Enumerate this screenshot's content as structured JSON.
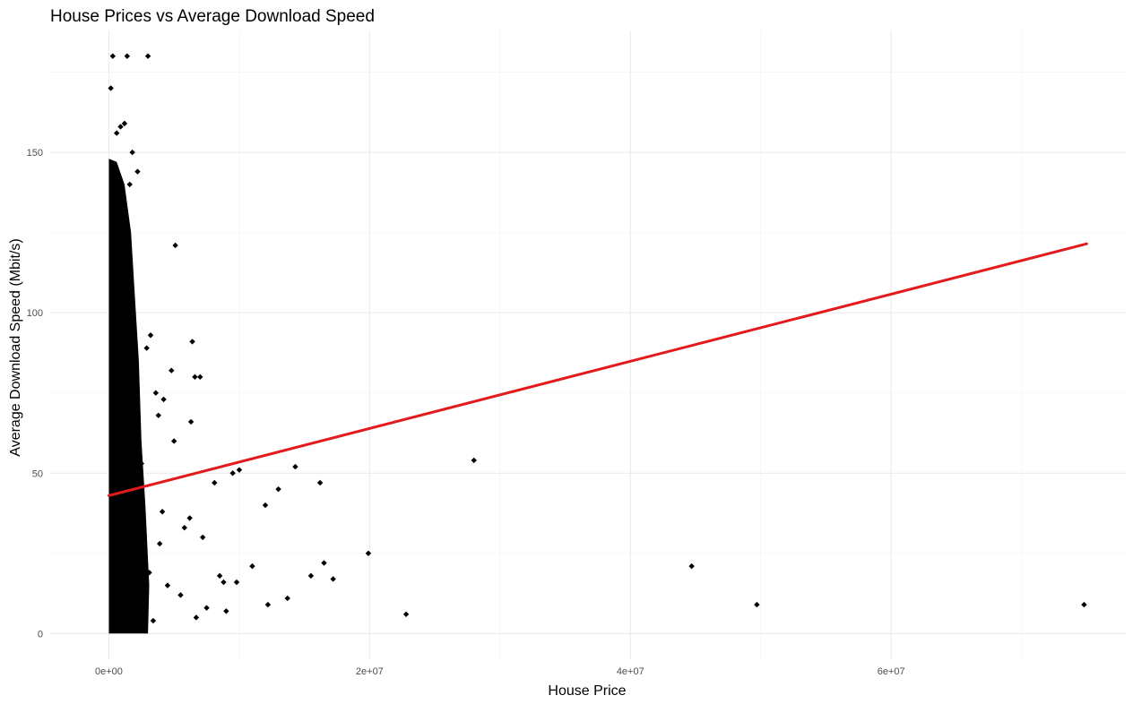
{
  "chart_data": {
    "type": "scatter",
    "title": "House Prices vs Average Download Speed",
    "xlabel": "House Price",
    "ylabel": "Average Download Speed (Mbit/s)",
    "xlim": [
      -4500000,
      78000000
    ],
    "ylim": [
      -8,
      188
    ],
    "x_ticks": [
      0,
      20000000,
      40000000,
      60000000
    ],
    "x_tick_labels": [
      "0e+00",
      "2e+07",
      "4e+07",
      "6e+07"
    ],
    "y_ticks": [
      0,
      50,
      100,
      150
    ],
    "y_tick_labels": [
      "0",
      "50",
      "100",
      "150"
    ],
    "grid": true,
    "point_color": "#000000",
    "trend_color": "#e31a1c",
    "trendline": {
      "x": [
        0,
        75000000
      ],
      "y": [
        43,
        121.5
      ]
    },
    "points": {
      "x": [
        300000,
        3000000,
        1400000,
        150000,
        900000,
        1200000,
        600000,
        1800000,
        2200000,
        5100000,
        6400000,
        3200000,
        4800000,
        7000000,
        6300000,
        2900000,
        3600000,
        4200000,
        3800000,
        6600000,
        5000000,
        1900000,
        2500000,
        10000000,
        14300000,
        16200000,
        13000000,
        28000000,
        9500000,
        8100000,
        12000000,
        19900000,
        44700000,
        16500000,
        15500000,
        17200000,
        11000000,
        13700000,
        12200000,
        49700000,
        74800000,
        22800000,
        9000000,
        5500000,
        6700000,
        7500000,
        3400000,
        4500000,
        2700000,
        8500000,
        3900000,
        5800000,
        6200000,
        7200000,
        4100000,
        2400000,
        9800000,
        8800000,
        3100000,
        1600000
      ],
      "y": [
        180,
        180,
        180,
        170,
        158,
        159,
        156,
        150,
        144,
        121,
        91,
        93,
        82,
        80,
        66,
        89,
        75,
        73,
        68,
        80,
        60,
        56,
        53,
        51,
        52,
        47,
        45,
        54,
        50,
        47,
        40,
        25,
        21,
        22,
        18,
        17,
        21,
        11,
        9,
        9,
        9,
        6,
        7,
        12,
        5,
        8,
        4,
        15,
        10,
        18,
        28,
        33,
        36,
        30,
        38,
        42,
        16,
        16,
        19,
        140
      ]
    }
  }
}
